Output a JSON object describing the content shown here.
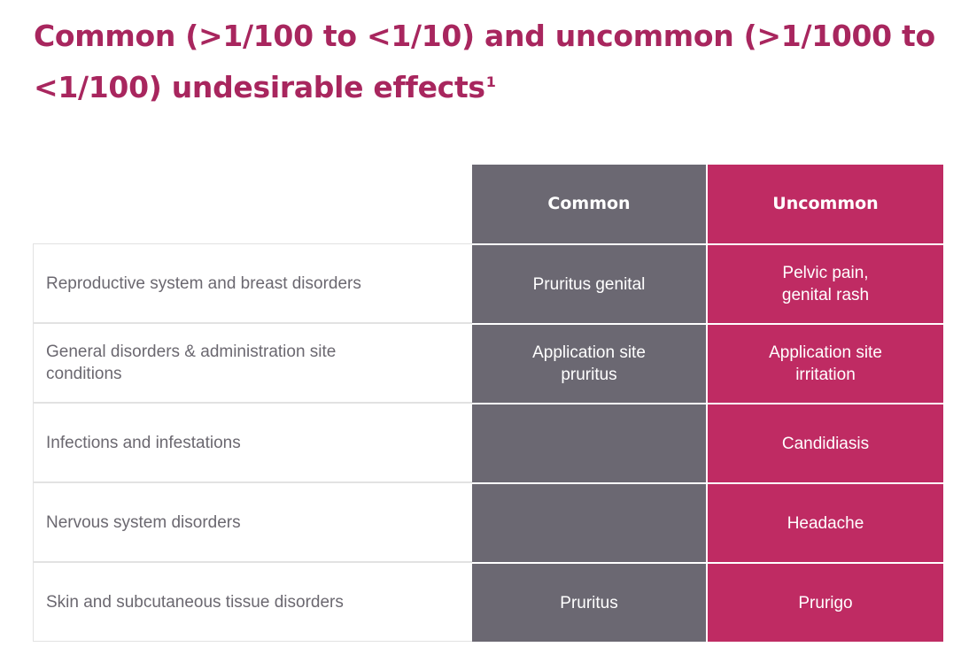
{
  "title": {
    "main": "Common (>1/100 to <1/10) and uncommon (>1/1000 to <1/100) undesirable effects",
    "superscript": "1"
  },
  "table": {
    "headers": {
      "common": "Common",
      "uncommon": "Uncommon"
    },
    "rows": [
      {
        "category": "Reproductive system and breast disorders",
        "common": "Pruritus genital",
        "uncommon": "Pelvic pain, genital rash"
      },
      {
        "category": "General disorders & administration site conditions",
        "common": "Application site pruritus",
        "uncommon": "Application site irritation"
      },
      {
        "category": "Infections and infestations",
        "common": "",
        "uncommon": "Candidiasis"
      },
      {
        "category": "Nervous system disorders",
        "common": "",
        "uncommon": "Headache"
      },
      {
        "category": "Skin and subcutaneous tissue disorders",
        "common": "Pruritus",
        "uncommon": "Prurigo"
      }
    ]
  },
  "colors": {
    "title": "#a8265e",
    "common_column": "#6b6872",
    "uncommon_column": "#bf2b63",
    "label_text": "#6b6870"
  }
}
